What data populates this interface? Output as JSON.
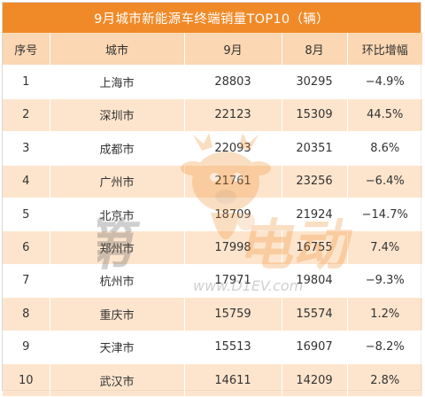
{
  "title": "9月城市新能源车终端销量TOP10（辆）",
  "columns": [
    "序号",
    "城市",
    "9月",
    "8月",
    "环比增幅"
  ],
  "rows": [
    [
      "1",
      "上海市",
      "28803",
      "30295",
      "−4.9%"
    ],
    [
      "2",
      "深圳市",
      "22123",
      "15309",
      "44.5%"
    ],
    [
      "3",
      "成都市",
      "22093",
      "20351",
      "8.6%"
    ],
    [
      "4",
      "广州市",
      "21761",
      "23256",
      "−6.4%"
    ],
    [
      "5",
      "北京市",
      "18709",
      "21924",
      "−14.7%"
    ],
    [
      "6",
      "郑州市",
      "17998",
      "16755",
      "7.4%"
    ],
    [
      "7",
      "杭州市",
      "17971",
      "19804",
      "−9.3%"
    ],
    [
      "8",
      "重庆市",
      "15759",
      "15574",
      "1.2%"
    ],
    [
      "9",
      "天津市",
      "15513",
      "16907",
      "−8.2%"
    ],
    [
      "10",
      "武汉市",
      "14611",
      "14209",
      "2.8%"
    ]
  ],
  "watermark": {
    "text_left": "第",
    "text_right": "电动",
    "url": "www.D1EV.com",
    "colors": {
      "orange": "#f08a28",
      "dark": "#555555"
    }
  }
}
